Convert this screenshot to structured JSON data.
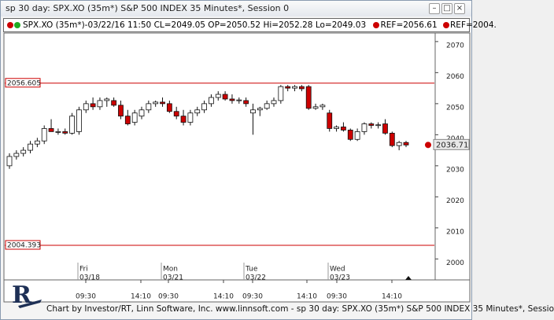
{
  "window_title": "sp 30 day: SPX.XO (35m*) S&P 500 INDEX 35 Minutes*, Session 0",
  "legend": {
    "main": "SPX.XO (35m*)-03/22/16 11:50 CL=2049.05 OP=2050.52 Hi=2052.28 Lo=2049.03",
    "ref1": "REF=2056.61",
    "ref2": "REF=2004."
  },
  "footer": "Chart by Investor/RT, Linn Software, Inc. www.linnsoft.com - sp 30 day: SPX.XO (35m*) S&P 500 INDEX 35 Minutes*, Sessio",
  "chart_data": {
    "type": "candlestick",
    "up_color": "#ffffff",
    "down_color": "#cc0000",
    "ylim": [
      1993.5,
      2072.5
    ],
    "yticks": [
      2000,
      2010,
      2020,
      2030,
      2040,
      2050,
      2060,
      2070
    ],
    "open": [
      2030,
      2033,
      2034,
      2035,
      2037,
      2038,
      2042,
      2041,
      2041,
      2040.5,
      2041,
      2048,
      2050,
      2049,
      2051,
      2051,
      2049.5,
      2046,
      2044,
      2046,
      2048,
      2050,
      2050.5,
      2050,
      2047.5,
      2046,
      2044,
      2047,
      2048,
      2050,
      2052,
      2053,
      2051.5,
      2051,
      2051,
      2047,
      2048,
      2048.5,
      2050,
      2051,
      2055.5,
      2055,
      2055.5,
      2055.5,
      2048.5,
      2049,
      2047,
      2042,
      2042.5,
      2041.5,
      2038.5,
      2041,
      2043.5,
      2043,
      2043.5,
      2040.5,
      2036.5,
      2037.5
    ],
    "high": [
      2034,
      2035,
      2036,
      2038,
      2039,
      2043,
      2045,
      2042,
      2042,
      2047,
      2049,
      2051,
      2052,
      2052,
      2052,
      2052,
      2051,
      2048,
      2048,
      2049,
      2051,
      2051,
      2052,
      2051,
      2049,
      2048,
      2048,
      2049,
      2051,
      2053,
      2054,
      2054,
      2053,
      2052,
      2052,
      2050,
      2049,
      2051,
      2052,
      2056,
      2056,
      2056,
      2056,
      2056,
      2050,
      2050,
      2048,
      2043,
      2044,
      2042,
      2042,
      2044,
      2044,
      2044,
      2045,
      2041,
      2038,
      2038
    ],
    "low": [
      2029,
      2032,
      2033,
      2034,
      2036,
      2037,
      2041,
      2040,
      2040,
      2040,
      2040,
      2047,
      2048,
      2048,
      2049,
      2049,
      2045,
      2043,
      2043,
      2045,
      2047,
      2049,
      2049,
      2047,
      2045,
      2043,
      2043,
      2046,
      2047,
      2049,
      2051,
      2051,
      2050,
      2050,
      2049,
      2040,
      2046,
      2048,
      2049,
      2050,
      2054,
      2054,
      2054,
      2048,
      2048,
      2048,
      2041,
      2041,
      2041,
      2038,
      2038,
      2040,
      2042,
      2042,
      2040,
      2036,
      2035,
      2036
    ],
    "close": [
      2033,
      2034,
      2035,
      2037,
      2038,
      2042,
      2041,
      2041,
      2040.5,
      2046,
      2048,
      2050,
      2049,
      2051,
      2051.5,
      2049.5,
      2046,
      2043.5,
      2047,
      2048,
      2050,
      2050.5,
      2050,
      2047.5,
      2046,
      2044,
      2047,
      2048,
      2050,
      2052,
      2053,
      2051.5,
      2051,
      2051.2,
      2050,
      2048,
      2048.5,
      2050,
      2051,
      2055.5,
      2055,
      2055.5,
      2054.8,
      2048.5,
      2049,
      2049.5,
      2042,
      2042.5,
      2041.5,
      2038.5,
      2041,
      2043.5,
      2043,
      2043.2,
      2040.5,
      2036.5,
      2037.5,
      2036.7
    ],
    "ref_lines": [
      {
        "value": 2056.605,
        "color": "#cc0000"
      },
      {
        "value": 2004.393,
        "color": "#cc0000"
      }
    ],
    "last_price": 2036.71,
    "days": [
      [
        "Fri",
        "03/18"
      ],
      [
        "Mon",
        "03/21"
      ],
      [
        "Tue",
        "03/22"
      ],
      [
        "Wed",
        "03/23"
      ]
    ],
    "times": [
      "09:30",
      "14:10",
      "09:30",
      "14:10",
      "09:30",
      "14:10",
      "09:30",
      "14:10"
    ]
  }
}
